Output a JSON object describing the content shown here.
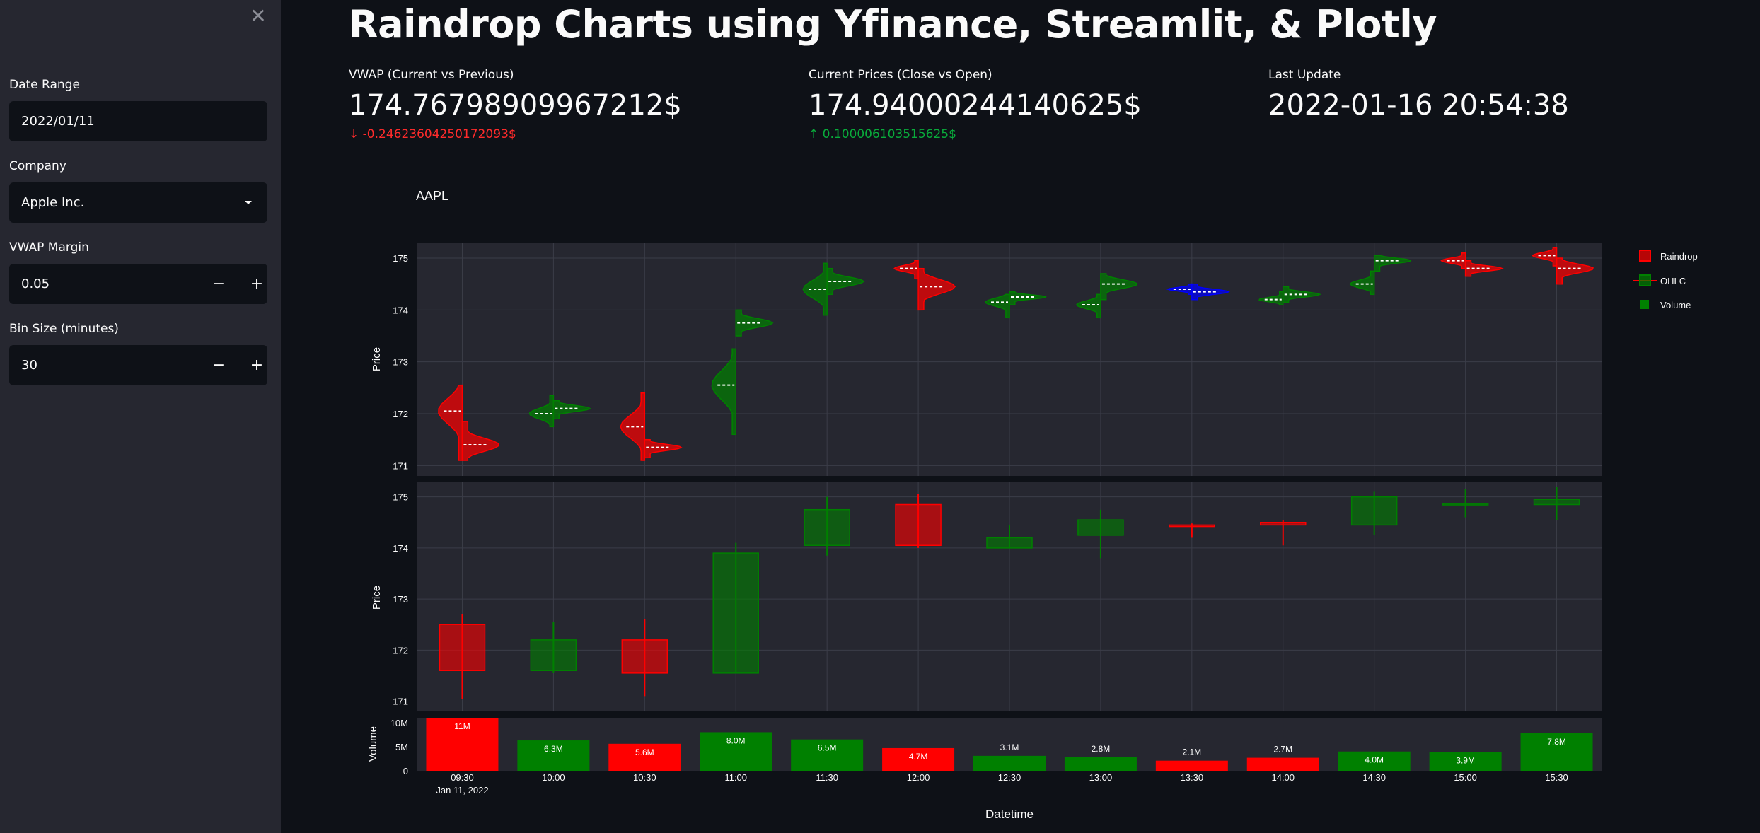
{
  "sidebar": {
    "close_icon": "close-icon",
    "date_range": {
      "label": "Date Range",
      "value": "2022/01/11"
    },
    "company": {
      "label": "Company",
      "value": "Apple Inc."
    },
    "vwap_margin": {
      "label": "VWAP Margin",
      "value": "0.05",
      "minus": "−",
      "plus": "+"
    },
    "bin_size": {
      "label": "Bin Size (minutes)",
      "value": "30",
      "minus": "−",
      "plus": "+"
    }
  },
  "main": {
    "title": "Raindrop Charts using Yfinance, Streamlit, & Plotly",
    "metrics": [
      {
        "label": "VWAP (Current vs Previous)",
        "value": "174.76798909967212$",
        "delta": "-0.24623604250172093$",
        "direction": "down",
        "arrow": "↓"
      },
      {
        "label": "Current Prices (Close vs Open)",
        "value": "174.94000244140625$",
        "delta": "0.100006103515625$",
        "direction": "up",
        "arrow": "↑"
      },
      {
        "label": "Last Update",
        "value": "2022-01-16 20:54:38",
        "delta": "",
        "direction": "",
        "arrow": ""
      }
    ]
  },
  "chart_data": {
    "type": "candlestick",
    "title": "AAPL",
    "xlabel": "Datetime",
    "x_date": "Jan 11, 2022",
    "colors": {
      "up": "#008000",
      "down": "#ff0000",
      "neutral": "#0000ff",
      "plot_bg": "#262730",
      "grid": "#3b3d48"
    },
    "legend": [
      "Raindrop",
      "OHLC",
      "Volume"
    ],
    "legend_position": "right",
    "price_ylabel": "Price",
    "volume_ylabel": "Volume",
    "price_ticks": [
      "171",
      "172",
      "173",
      "174",
      "175"
    ],
    "volume_ticks": [
      "0",
      "5M",
      "10M"
    ],
    "ylim_price": [
      170.8,
      175.3
    ],
    "ylim_volume": [
      0,
      11
    ],
    "categories": [
      "09:30",
      "10:00",
      "10:30",
      "11:00",
      "11:30",
      "12:00",
      "12:30",
      "13:00",
      "13:30",
      "14:00",
      "14:30",
      "15:00",
      "15:30"
    ],
    "ohlc": [
      {
        "open": 172.5,
        "high": 172.7,
        "low": 171.05,
        "close": 171.6
      },
      {
        "open": 171.6,
        "high": 172.55,
        "low": 171.55,
        "close": 172.2
      },
      {
        "open": 172.2,
        "high": 172.6,
        "low": 171.1,
        "close": 171.55
      },
      {
        "open": 171.55,
        "high": 174.1,
        "low": 171.55,
        "close": 173.9
      },
      {
        "open": 174.05,
        "high": 175.0,
        "low": 173.85,
        "close": 174.75
      },
      {
        "open": 174.85,
        "high": 175.05,
        "low": 174.0,
        "close": 174.05
      },
      {
        "open": 174.0,
        "high": 174.45,
        "low": 174.0,
        "close": 174.2
      },
      {
        "open": 174.25,
        "high": 174.75,
        "low": 173.8,
        "close": 174.55
      },
      {
        "open": 174.45,
        "high": 174.48,
        "low": 174.2,
        "close": 174.42
      },
      {
        "open": 174.5,
        "high": 174.55,
        "low": 174.05,
        "close": 174.45
      },
      {
        "open": 174.45,
        "high": 175.1,
        "low": 174.25,
        "close": 175.0
      },
      {
        "open": 174.85,
        "high": 175.15,
        "low": 174.6,
        "close": 174.87
      },
      {
        "open": 174.85,
        "high": 175.2,
        "low": 174.55,
        "close": 174.95
      }
    ],
    "volume": [
      11,
      6.3,
      5.6,
      8.0,
      6.5,
      4.7,
      3.1,
      2.8,
      2.1,
      2.7,
      4.0,
      3.9,
      7.8
    ],
    "volume_labels": [
      "11M",
      "6.3M",
      "5.6M",
      "8.0M",
      "6.5M",
      "4.7M",
      "3.1M",
      "2.8M",
      "2.1M",
      "2.7M",
      "4.0M",
      "3.9M",
      "7.8M"
    ],
    "raindrop": [
      {
        "color": "down",
        "left": {
          "low": 171.1,
          "high": 172.55,
          "vwap": 172.05
        },
        "right": {
          "low": 171.1,
          "high": 171.85,
          "vwap": 171.4
        }
      },
      {
        "color": "up",
        "left": {
          "low": 171.75,
          "high": 172.35,
          "vwap": 172.0
        },
        "right": {
          "low": 171.9,
          "high": 172.25,
          "vwap": 172.1
        }
      },
      {
        "color": "down",
        "left": {
          "low": 171.1,
          "high": 172.4,
          "vwap": 171.75
        },
        "right": {
          "low": 171.15,
          "high": 171.5,
          "vwap": 171.35
        }
      },
      {
        "color": "up",
        "left": {
          "low": 171.6,
          "high": 173.25,
          "vwap": 172.55
        },
        "right": {
          "low": 173.5,
          "high": 174.0,
          "vwap": 173.75
        }
      },
      {
        "color": "up",
        "left": {
          "low": 173.9,
          "high": 174.9,
          "vwap": 174.4
        },
        "right": {
          "low": 174.3,
          "high": 174.8,
          "vwap": 174.55
        }
      },
      {
        "color": "down",
        "left": {
          "low": 174.6,
          "high": 174.95,
          "vwap": 174.8
        },
        "right": {
          "low": 174.0,
          "high": 174.8,
          "vwap": 174.45
        }
      },
      {
        "color": "up",
        "left": {
          "low": 173.85,
          "high": 174.3,
          "vwap": 174.15
        },
        "right": {
          "low": 174.1,
          "high": 174.35,
          "vwap": 174.25
        }
      },
      {
        "color": "up",
        "left": {
          "low": 173.85,
          "high": 174.3,
          "vwap": 174.1
        },
        "right": {
          "low": 174.2,
          "high": 174.7,
          "vwap": 174.5
        }
      },
      {
        "color": "neutral",
        "left": {
          "low": 174.3,
          "high": 174.5,
          "vwap": 174.4
        },
        "right": {
          "low": 174.2,
          "high": 174.5,
          "vwap": 174.35
        }
      },
      {
        "color": "up",
        "left": {
          "low": 174.1,
          "high": 174.35,
          "vwap": 174.2
        },
        "right": {
          "low": 174.15,
          "high": 174.45,
          "vwap": 174.3
        }
      },
      {
        "color": "up",
        "left": {
          "low": 174.3,
          "high": 174.75,
          "vwap": 174.5
        },
        "right": {
          "low": 174.75,
          "high": 175.05,
          "vwap": 174.95
        }
      },
      {
        "color": "down",
        "left": {
          "low": 174.8,
          "high": 175.1,
          "vwap": 174.95
        },
        "right": {
          "low": 174.65,
          "high": 174.95,
          "vwap": 174.8
        }
      },
      {
        "color": "down",
        "left": {
          "low": 174.85,
          "high": 175.2,
          "vwap": 175.05
        },
        "right": {
          "low": 174.5,
          "high": 175.0,
          "vwap": 174.8
        }
      }
    ]
  }
}
